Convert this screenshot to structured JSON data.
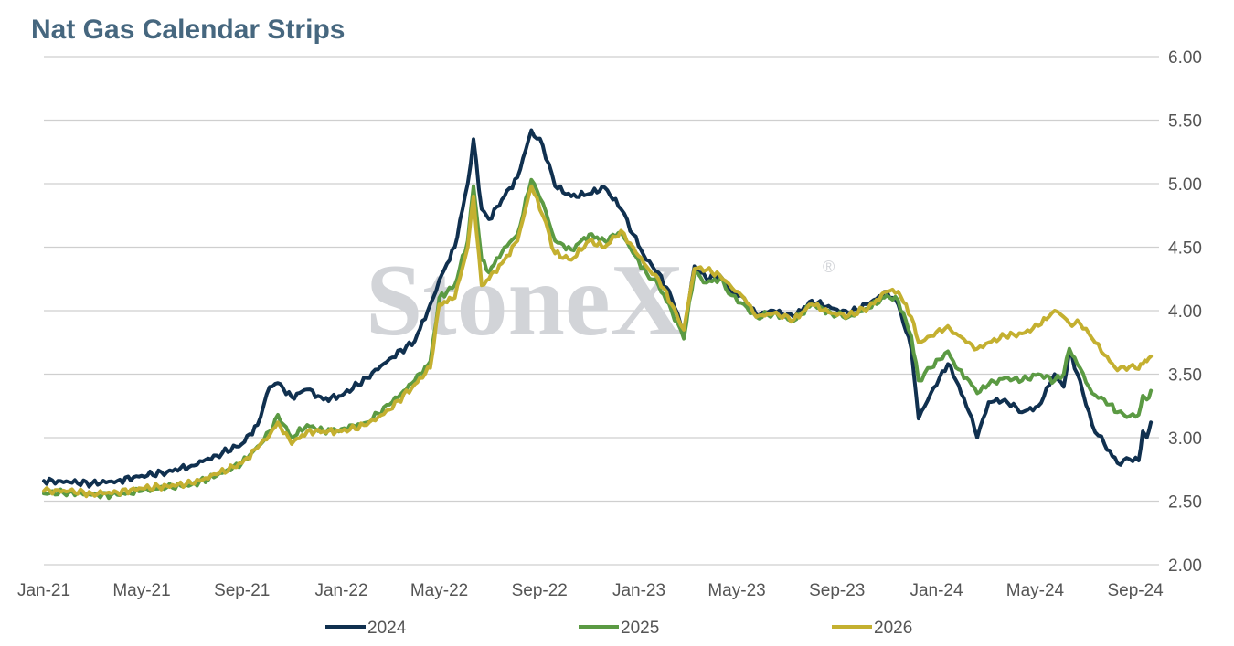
{
  "chart_data": {
    "type": "line",
    "title": "Nat Gas Calendar Strips",
    "watermark": "StoneX",
    "watermark_mark": "®",
    "xlabel": "",
    "ylabel": "",
    "x_range": [
      "2021-01-01",
      "2024-09-30"
    ],
    "x_ticks": [
      "Jan-21",
      "May-21",
      "Sep-21",
      "Jan-22",
      "May-22",
      "Sep-22",
      "Jan-23",
      "May-23",
      "Sep-23",
      "Jan-24",
      "May-24",
      "Sep-24"
    ],
    "x_tick_dates": [
      "2021-01-01",
      "2021-05-01",
      "2021-09-01",
      "2022-01-01",
      "2022-05-01",
      "2022-09-01",
      "2023-01-01",
      "2023-05-01",
      "2023-09-01",
      "2024-01-01",
      "2024-05-01",
      "2024-09-01"
    ],
    "ylim": [
      2.0,
      6.0
    ],
    "y_ticks": [
      "2.00",
      "2.50",
      "3.00",
      "3.50",
      "4.00",
      "4.50",
      "5.00",
      "5.50",
      "6.00"
    ],
    "y_axis_side": "right",
    "grid": "horizontal",
    "legend_position": "bottom",
    "series": [
      {
        "name": "2024",
        "color": "#10304f",
        "points": [
          [
            "2021-01-01",
            2.66
          ],
          [
            "2021-02-01",
            2.65
          ],
          [
            "2021-03-01",
            2.64
          ],
          [
            "2021-04-01",
            2.66
          ],
          [
            "2021-05-01",
            2.7
          ],
          [
            "2021-06-01",
            2.73
          ],
          [
            "2021-07-01",
            2.78
          ],
          [
            "2021-08-01",
            2.86
          ],
          [
            "2021-09-01",
            2.95
          ],
          [
            "2021-09-20",
            3.1
          ],
          [
            "2021-10-05",
            3.4
          ],
          [
            "2021-10-15",
            3.43
          ],
          [
            "2021-11-01",
            3.32
          ],
          [
            "2021-11-20",
            3.38
          ],
          [
            "2021-12-10",
            3.3
          ],
          [
            "2022-01-01",
            3.33
          ],
          [
            "2022-02-01",
            3.47
          ],
          [
            "2022-03-01",
            3.62
          ],
          [
            "2022-04-01",
            3.76
          ],
          [
            "2022-04-20",
            4.05
          ],
          [
            "2022-05-01",
            4.24
          ],
          [
            "2022-05-20",
            4.5
          ],
          [
            "2022-06-05",
            5.0
          ],
          [
            "2022-06-12",
            5.35
          ],
          [
            "2022-06-22",
            4.8
          ],
          [
            "2022-07-01",
            4.72
          ],
          [
            "2022-07-20",
            4.9
          ],
          [
            "2022-08-05",
            5.05
          ],
          [
            "2022-08-22",
            5.42
          ],
          [
            "2022-09-05",
            5.3
          ],
          [
            "2022-09-20",
            4.98
          ],
          [
            "2022-10-10",
            4.9
          ],
          [
            "2022-11-01",
            4.92
          ],
          [
            "2022-11-20",
            4.97
          ],
          [
            "2022-12-10",
            4.8
          ],
          [
            "2022-12-25",
            4.6
          ],
          [
            "2023-01-10",
            4.4
          ],
          [
            "2023-01-25",
            4.3
          ],
          [
            "2023-02-10",
            4.1
          ],
          [
            "2023-02-25",
            3.82
          ],
          [
            "2023-03-10",
            4.35
          ],
          [
            "2023-03-25",
            4.25
          ],
          [
            "2023-04-10",
            4.28
          ],
          [
            "2023-04-25",
            4.15
          ],
          [
            "2023-05-10",
            4.1
          ],
          [
            "2023-05-25",
            3.97
          ],
          [
            "2023-06-15",
            4.0
          ],
          [
            "2023-07-10",
            3.95
          ],
          [
            "2023-08-01",
            4.08
          ],
          [
            "2023-08-25",
            4.02
          ],
          [
            "2023-09-15",
            3.98
          ],
          [
            "2023-10-10",
            4.05
          ],
          [
            "2023-11-01",
            4.15
          ],
          [
            "2023-11-15",
            4.05
          ],
          [
            "2023-12-01",
            3.7
          ],
          [
            "2023-12-10",
            3.15
          ],
          [
            "2023-12-25",
            3.35
          ],
          [
            "2024-01-15",
            3.58
          ],
          [
            "2024-01-25",
            3.45
          ],
          [
            "2024-02-10",
            3.2
          ],
          [
            "2024-02-20",
            3.0
          ],
          [
            "2024-03-05",
            3.28
          ],
          [
            "2024-03-25",
            3.3
          ],
          [
            "2024-04-15",
            3.2
          ],
          [
            "2024-05-05",
            3.25
          ],
          [
            "2024-05-25",
            3.5
          ],
          [
            "2024-06-05",
            3.4
          ],
          [
            "2024-06-12",
            3.68
          ],
          [
            "2024-06-25",
            3.45
          ],
          [
            "2024-07-10",
            3.1
          ],
          [
            "2024-07-25",
            2.95
          ],
          [
            "2024-08-10",
            2.8
          ],
          [
            "2024-08-25",
            2.83
          ],
          [
            "2024-09-05",
            2.82
          ],
          [
            "2024-09-10",
            3.05
          ],
          [
            "2024-09-15",
            3.0
          ],
          [
            "2024-09-20",
            3.12
          ]
        ]
      },
      {
        "name": "2025",
        "color": "#5b9a43",
        "points": [
          [
            "2021-01-01",
            2.56
          ],
          [
            "2021-02-01",
            2.57
          ],
          [
            "2021-03-01",
            2.55
          ],
          [
            "2021-04-01",
            2.55
          ],
          [
            "2021-05-01",
            2.58
          ],
          [
            "2021-06-01",
            2.61
          ],
          [
            "2021-07-01",
            2.63
          ],
          [
            "2021-08-01",
            2.7
          ],
          [
            "2021-09-01",
            2.8
          ],
          [
            "2021-09-20",
            2.93
          ],
          [
            "2021-10-05",
            3.05
          ],
          [
            "2021-10-15",
            3.18
          ],
          [
            "2021-11-01",
            3.0
          ],
          [
            "2021-11-20",
            3.1
          ],
          [
            "2021-12-10",
            3.05
          ],
          [
            "2022-01-01",
            3.07
          ],
          [
            "2022-02-01",
            3.12
          ],
          [
            "2022-03-01",
            3.26
          ],
          [
            "2022-04-01",
            3.45
          ],
          [
            "2022-04-20",
            3.6
          ],
          [
            "2022-05-01",
            4.1
          ],
          [
            "2022-05-20",
            4.2
          ],
          [
            "2022-06-05",
            4.55
          ],
          [
            "2022-06-12",
            4.98
          ],
          [
            "2022-06-22",
            4.4
          ],
          [
            "2022-07-01",
            4.3
          ],
          [
            "2022-07-20",
            4.5
          ],
          [
            "2022-08-05",
            4.6
          ],
          [
            "2022-08-22",
            5.03
          ],
          [
            "2022-09-05",
            4.85
          ],
          [
            "2022-09-20",
            4.55
          ],
          [
            "2022-10-10",
            4.48
          ],
          [
            "2022-11-01",
            4.6
          ],
          [
            "2022-11-20",
            4.55
          ],
          [
            "2022-12-10",
            4.62
          ],
          [
            "2022-12-25",
            4.45
          ],
          [
            "2023-01-10",
            4.3
          ],
          [
            "2023-01-25",
            4.2
          ],
          [
            "2023-02-10",
            4.0
          ],
          [
            "2023-02-25",
            3.78
          ],
          [
            "2023-03-10",
            4.3
          ],
          [
            "2023-03-25",
            4.22
          ],
          [
            "2023-04-10",
            4.25
          ],
          [
            "2023-04-25",
            4.12
          ],
          [
            "2023-05-10",
            4.05
          ],
          [
            "2023-05-25",
            3.95
          ],
          [
            "2023-06-15",
            3.98
          ],
          [
            "2023-07-10",
            3.92
          ],
          [
            "2023-08-01",
            4.05
          ],
          [
            "2023-08-25",
            3.98
          ],
          [
            "2023-09-15",
            3.95
          ],
          [
            "2023-10-10",
            4.02
          ],
          [
            "2023-11-01",
            4.12
          ],
          [
            "2023-11-15",
            4.08
          ],
          [
            "2023-12-01",
            3.8
          ],
          [
            "2023-12-10",
            3.45
          ],
          [
            "2023-12-25",
            3.55
          ],
          [
            "2024-01-15",
            3.68
          ],
          [
            "2024-01-25",
            3.55
          ],
          [
            "2024-02-10",
            3.45
          ],
          [
            "2024-02-20",
            3.35
          ],
          [
            "2024-03-05",
            3.42
          ],
          [
            "2024-03-25",
            3.47
          ],
          [
            "2024-04-15",
            3.45
          ],
          [
            "2024-05-05",
            3.5
          ],
          [
            "2024-05-25",
            3.45
          ],
          [
            "2024-06-05",
            3.5
          ],
          [
            "2024-06-12",
            3.7
          ],
          [
            "2024-06-25",
            3.55
          ],
          [
            "2024-07-10",
            3.35
          ],
          [
            "2024-07-25",
            3.3
          ],
          [
            "2024-08-10",
            3.2
          ],
          [
            "2024-08-25",
            3.17
          ],
          [
            "2024-09-05",
            3.18
          ],
          [
            "2024-09-10",
            3.33
          ],
          [
            "2024-09-15",
            3.3
          ],
          [
            "2024-09-20",
            3.37
          ]
        ]
      },
      {
        "name": "2026",
        "color": "#c4b030",
        "points": [
          [
            "2021-01-01",
            2.58
          ],
          [
            "2021-02-01",
            2.58
          ],
          [
            "2021-03-01",
            2.56
          ],
          [
            "2021-04-01",
            2.57
          ],
          [
            "2021-05-01",
            2.6
          ],
          [
            "2021-06-01",
            2.62
          ],
          [
            "2021-07-01",
            2.64
          ],
          [
            "2021-08-01",
            2.71
          ],
          [
            "2021-09-01",
            2.8
          ],
          [
            "2021-09-20",
            2.92
          ],
          [
            "2021-10-05",
            3.02
          ],
          [
            "2021-10-15",
            3.12
          ],
          [
            "2021-11-01",
            2.95
          ],
          [
            "2021-11-20",
            3.05
          ],
          [
            "2021-12-10",
            3.05
          ],
          [
            "2022-01-01",
            3.05
          ],
          [
            "2022-02-01",
            3.1
          ],
          [
            "2022-03-01",
            3.22
          ],
          [
            "2022-04-01",
            3.42
          ],
          [
            "2022-04-20",
            3.55
          ],
          [
            "2022-05-01",
            4.05
          ],
          [
            "2022-05-20",
            4.1
          ],
          [
            "2022-06-05",
            4.5
          ],
          [
            "2022-06-12",
            4.9
          ],
          [
            "2022-06-22",
            4.2
          ],
          [
            "2022-07-01",
            4.25
          ],
          [
            "2022-07-20",
            4.4
          ],
          [
            "2022-08-05",
            4.55
          ],
          [
            "2022-08-22",
            4.98
          ],
          [
            "2022-09-05",
            4.75
          ],
          [
            "2022-09-20",
            4.45
          ],
          [
            "2022-10-10",
            4.4
          ],
          [
            "2022-11-01",
            4.55
          ],
          [
            "2022-11-20",
            4.5
          ],
          [
            "2022-12-10",
            4.63
          ],
          [
            "2022-12-25",
            4.5
          ],
          [
            "2023-01-10",
            4.35
          ],
          [
            "2023-01-25",
            4.25
          ],
          [
            "2023-02-10",
            4.05
          ],
          [
            "2023-02-25",
            3.85
          ],
          [
            "2023-03-10",
            4.33
          ],
          [
            "2023-03-25",
            4.32
          ],
          [
            "2023-04-10",
            4.28
          ],
          [
            "2023-04-25",
            4.18
          ],
          [
            "2023-05-10",
            4.1
          ],
          [
            "2023-05-25",
            3.95
          ],
          [
            "2023-06-15",
            3.98
          ],
          [
            "2023-07-10",
            3.93
          ],
          [
            "2023-08-01",
            4.05
          ],
          [
            "2023-08-25",
            3.98
          ],
          [
            "2023-09-15",
            3.96
          ],
          [
            "2023-10-10",
            4.03
          ],
          [
            "2023-11-01",
            4.15
          ],
          [
            "2023-11-15",
            4.15
          ],
          [
            "2023-12-01",
            3.95
          ],
          [
            "2023-12-10",
            3.75
          ],
          [
            "2023-12-25",
            3.8
          ],
          [
            "2024-01-15",
            3.88
          ],
          [
            "2024-01-25",
            3.82
          ],
          [
            "2024-02-10",
            3.75
          ],
          [
            "2024-02-20",
            3.7
          ],
          [
            "2024-03-05",
            3.75
          ],
          [
            "2024-03-25",
            3.8
          ],
          [
            "2024-04-15",
            3.82
          ],
          [
            "2024-05-05",
            3.88
          ],
          [
            "2024-05-25",
            4.0
          ],
          [
            "2024-06-05",
            3.95
          ],
          [
            "2024-06-12",
            3.9
          ],
          [
            "2024-06-25",
            3.9
          ],
          [
            "2024-07-10",
            3.78
          ],
          [
            "2024-07-25",
            3.65
          ],
          [
            "2024-08-10",
            3.53
          ],
          [
            "2024-08-25",
            3.56
          ],
          [
            "2024-09-05",
            3.54
          ],
          [
            "2024-09-10",
            3.58
          ],
          [
            "2024-09-15",
            3.6
          ],
          [
            "2024-09-20",
            3.64
          ]
        ]
      }
    ]
  }
}
